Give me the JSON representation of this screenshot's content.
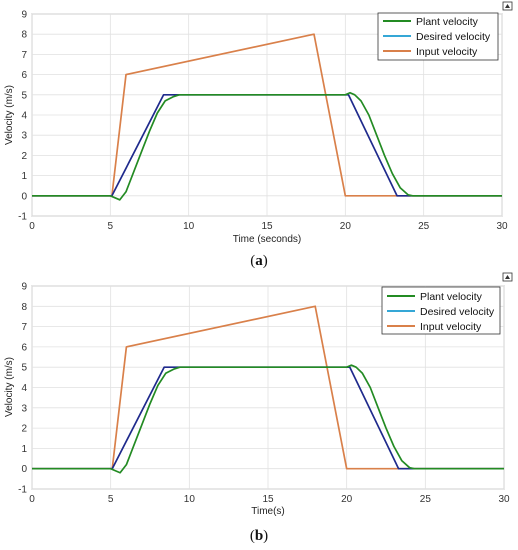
{
  "figure": {
    "captions": [
      {
        "open": "(",
        "letter": "a",
        "close": ")"
      },
      {
        "open": "(",
        "letter": "b",
        "close": ")"
      }
    ]
  },
  "colors": {
    "plant": "#238b23",
    "desired": "#1f2a8c",
    "input": "#d9804a",
    "grid": "#e1e1e1",
    "axis": "#888888"
  },
  "chart_data": [
    {
      "type": "line",
      "panel": "a",
      "title": "",
      "xlabel": "Time (seconds)",
      "ylabel": "Velocity (m/s)",
      "xlim": [
        0,
        30
      ],
      "ylim": [
        -1,
        9
      ],
      "xticks": [
        "0",
        "5",
        "10",
        "15",
        "20",
        "25",
        "30"
      ],
      "yticks": [
        "-1",
        "0",
        "1",
        "2",
        "3",
        "4",
        "5",
        "6",
        "7",
        "8",
        "9"
      ],
      "grid": true,
      "legend": "top-right",
      "series": [
        {
          "name": "Plant velocity",
          "color": "#238b23",
          "x": [
            0,
            5,
            5.3,
            5.6,
            6.0,
            6.5,
            7.0,
            7.5,
            8.0,
            8.5,
            9.0,
            9.4,
            9.8,
            10.2,
            11,
            15,
            20,
            20.3,
            20.6,
            21.0,
            21.5,
            22.0,
            22.5,
            23.0,
            23.5,
            24.0,
            24.3,
            24.7,
            25,
            30
          ],
          "y": [
            0,
            0,
            -0.1,
            -0.2,
            0.2,
            1.2,
            2.2,
            3.2,
            4.1,
            4.7,
            4.9,
            5.0,
            5.0,
            5.0,
            5.0,
            5.0,
            5.0,
            5.1,
            5.0,
            4.7,
            4.0,
            3.0,
            2.0,
            1.1,
            0.4,
            0.05,
            0,
            0,
            0,
            0
          ]
        },
        {
          "name": "Desired velocity",
          "color": "#1f2a8c",
          "x": [
            0,
            5.1,
            8.4,
            20.2,
            23.3,
            30
          ],
          "y": [
            0,
            0,
            5,
            5,
            0,
            0
          ]
        },
        {
          "name": "Input velocity",
          "color": "#d9804a",
          "x": [
            0,
            5.1,
            6.0,
            18.0,
            20.0,
            30
          ],
          "y": [
            0,
            0,
            6,
            8,
            0,
            0
          ]
        }
      ]
    },
    {
      "type": "line",
      "panel": "b",
      "title": "",
      "xlabel": "Time(s)",
      "ylabel": "Velocity (m/s)",
      "xlim": [
        0,
        30
      ],
      "ylim": [
        -1,
        9
      ],
      "xticks": [
        "0",
        "5",
        "10",
        "15",
        "20",
        "25",
        "30"
      ],
      "yticks": [
        "-1",
        "0",
        "1",
        "2",
        "3",
        "4",
        "5",
        "6",
        "7",
        "8",
        "9"
      ],
      "grid": true,
      "legend": "top-right",
      "series": [
        {
          "name": "Plant velocity",
          "color": "#238b23",
          "x": [
            0,
            5,
            5.3,
            5.6,
            6.0,
            6.5,
            7.0,
            7.5,
            8.0,
            8.5,
            9.0,
            9.4,
            9.8,
            10.2,
            11,
            15,
            20,
            20.3,
            20.6,
            21.0,
            21.5,
            22.0,
            22.5,
            23.0,
            23.5,
            24.0,
            24.3,
            24.7,
            25,
            30
          ],
          "y": [
            0,
            0,
            -0.1,
            -0.2,
            0.2,
            1.2,
            2.2,
            3.2,
            4.1,
            4.7,
            4.9,
            5.0,
            5.0,
            5.0,
            5.0,
            5.0,
            5.0,
            5.1,
            5.0,
            4.7,
            4.0,
            3.0,
            2.0,
            1.1,
            0.4,
            0.05,
            0,
            0,
            0,
            0
          ]
        },
        {
          "name": "Desired velocity",
          "color": "#1f2a8c",
          "x": [
            0,
            5.1,
            8.4,
            20.2,
            23.3,
            30
          ],
          "y": [
            0,
            0,
            5,
            5,
            0,
            0
          ]
        },
        {
          "name": "Input velocity",
          "color": "#d9804a",
          "x": [
            0,
            5.1,
            6.0,
            18.0,
            20.0,
            30
          ],
          "y": [
            0,
            0,
            6,
            8,
            0,
            0
          ]
        }
      ]
    }
  ]
}
